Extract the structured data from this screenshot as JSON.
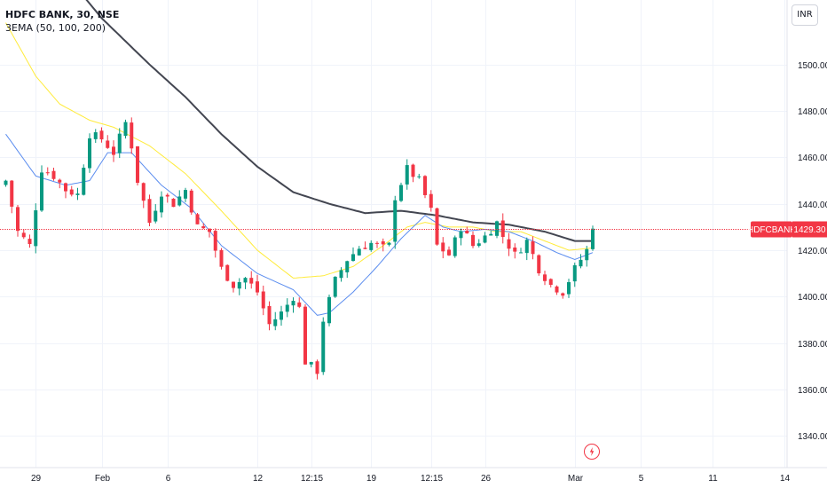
{
  "header": {
    "symbol_line": "HDFC BANK, 30, NSE",
    "indicator_line": "3EMA (50, 100, 200)"
  },
  "price_axis": {
    "currency_button": "INR"
  },
  "last_price": {
    "symbol_label": "HDFCBANK",
    "value": "1429.30",
    "value_num": 1429.3,
    "color": "#f23645"
  },
  "colors": {
    "up": "#089981",
    "down": "#f23645",
    "ema50": "#5b8def",
    "ema100": "#ffeb3b",
    "ema200": "#434651"
  },
  "chart_data": {
    "type": "candlestick",
    "title": "HDFC BANK, 30, NSE",
    "ylim": [
      1326,
      1519
    ],
    "yticks": [
      1340,
      1360,
      1380,
      1400,
      1420,
      1440,
      1460,
      1480,
      1500
    ],
    "ytick_labels": [
      "1340.00",
      "1360.00",
      "1380.00",
      "1400.00",
      "1420.00",
      "1440.00",
      "1460.00",
      "1480.00",
      "1500.00"
    ],
    "xticks": [
      {
        "label": "29",
        "bar": 5
      },
      {
        "label": "Feb",
        "bar": 16
      },
      {
        "label": "6",
        "bar": 27
      },
      {
        "label": "12",
        "bar": 42
      },
      {
        "label": "12:15",
        "bar": 51
      },
      {
        "label": "19",
        "bar": 61
      },
      {
        "label": "12:15",
        "bar": 71
      },
      {
        "label": "26",
        "bar": 80
      },
      {
        "label": "Mar",
        "bar": 95
      },
      {
        "label": "5",
        "bar": 106
      },
      {
        "label": "11",
        "bar": 118
      },
      {
        "label": "14",
        "bar": 130
      }
    ],
    "close_keypoints": [
      [
        0,
        1450
      ],
      [
        2,
        1428
      ],
      [
        4,
        1422
      ],
      [
        6,
        1455
      ],
      [
        8,
        1452
      ],
      [
        10,
        1446
      ],
      [
        12,
        1444
      ],
      [
        14,
        1470
      ],
      [
        16,
        1468
      ],
      [
        18,
        1462
      ],
      [
        20,
        1475
      ],
      [
        21,
        1465
      ],
      [
        22,
        1450
      ],
      [
        24,
        1432
      ],
      [
        26,
        1445
      ],
      [
        28,
        1440
      ],
      [
        30,
        1446
      ],
      [
        32,
        1430
      ],
      [
        34,
        1428
      ],
      [
        36,
        1412
      ],
      [
        38,
        1405
      ],
      [
        40,
        1408
      ],
      [
        42,
        1402
      ],
      [
        44,
        1388
      ],
      [
        46,
        1393
      ],
      [
        48,
        1400
      ],
      [
        49,
        1395
      ],
      [
        50,
        1372
      ],
      [
        52,
        1368
      ],
      [
        53,
        1390
      ],
      [
        55,
        1407
      ],
      [
        57,
        1416
      ],
      [
        59,
        1421
      ],
      [
        61,
        1423
      ],
      [
        63,
        1421
      ],
      [
        64,
        1422
      ],
      [
        65,
        1443
      ],
      [
        67,
        1455
      ],
      [
        69,
        1450
      ],
      [
        71,
        1437
      ],
      [
        72,
        1422
      ],
      [
        74,
        1418
      ],
      [
        76,
        1430
      ],
      [
        78,
        1422
      ],
      [
        80,
        1426
      ],
      [
        82,
        1432
      ],
      [
        83,
        1426
      ],
      [
        85,
        1418
      ],
      [
        87,
        1424
      ],
      [
        89,
        1412
      ],
      [
        91,
        1405
      ],
      [
        93,
        1402
      ],
      [
        95,
        1412
      ],
      [
        97,
        1420
      ],
      [
        98,
        1429.3
      ]
    ],
    "ema50_keypoints": [
      [
        0,
        1470
      ],
      [
        5,
        1452
      ],
      [
        10,
        1448
      ],
      [
        14,
        1450
      ],
      [
        17,
        1462
      ],
      [
        21,
        1462
      ],
      [
        26,
        1448
      ],
      [
        31,
        1438
      ],
      [
        36,
        1422
      ],
      [
        42,
        1410
      ],
      [
        48,
        1403
      ],
      [
        52,
        1392
      ],
      [
        54,
        1393
      ],
      [
        58,
        1402
      ],
      [
        62,
        1413
      ],
      [
        66,
        1425
      ],
      [
        70,
        1435
      ],
      [
        73,
        1430
      ],
      [
        76,
        1428
      ],
      [
        80,
        1429
      ],
      [
        84,
        1428
      ],
      [
        88,
        1424
      ],
      [
        92,
        1419
      ],
      [
        95,
        1416
      ],
      [
        98,
        1419
      ]
    ],
    "ema100_keypoints": [
      [
        0,
        1518
      ],
      [
        5,
        1495
      ],
      [
        9,
        1483
      ],
      [
        14,
        1476
      ],
      [
        18,
        1473
      ],
      [
        24,
        1465
      ],
      [
        30,
        1453
      ],
      [
        36,
        1437
      ],
      [
        42,
        1420
      ],
      [
        48,
        1408
      ],
      [
        53,
        1409
      ],
      [
        58,
        1413
      ],
      [
        63,
        1422
      ],
      [
        67,
        1430
      ],
      [
        70,
        1432
      ],
      [
        74,
        1430
      ],
      [
        78,
        1430
      ],
      [
        82,
        1428
      ],
      [
        86,
        1428
      ],
      [
        90,
        1424
      ],
      [
        94,
        1420
      ],
      [
        98,
        1421
      ]
    ],
    "ema200_keypoints": [
      [
        8,
        1545
      ],
      [
        16,
        1520
      ],
      [
        24,
        1500
      ],
      [
        30,
        1486
      ],
      [
        36,
        1470
      ],
      [
        42,
        1456
      ],
      [
        48,
        1445
      ],
      [
        54,
        1440
      ],
      [
        60,
        1436
      ],
      [
        66,
        1437
      ],
      [
        72,
        1435
      ],
      [
        78,
        1432
      ],
      [
        84,
        1431
      ],
      [
        90,
        1428
      ],
      [
        95,
        1424
      ],
      [
        98,
        1424
      ]
    ]
  }
}
